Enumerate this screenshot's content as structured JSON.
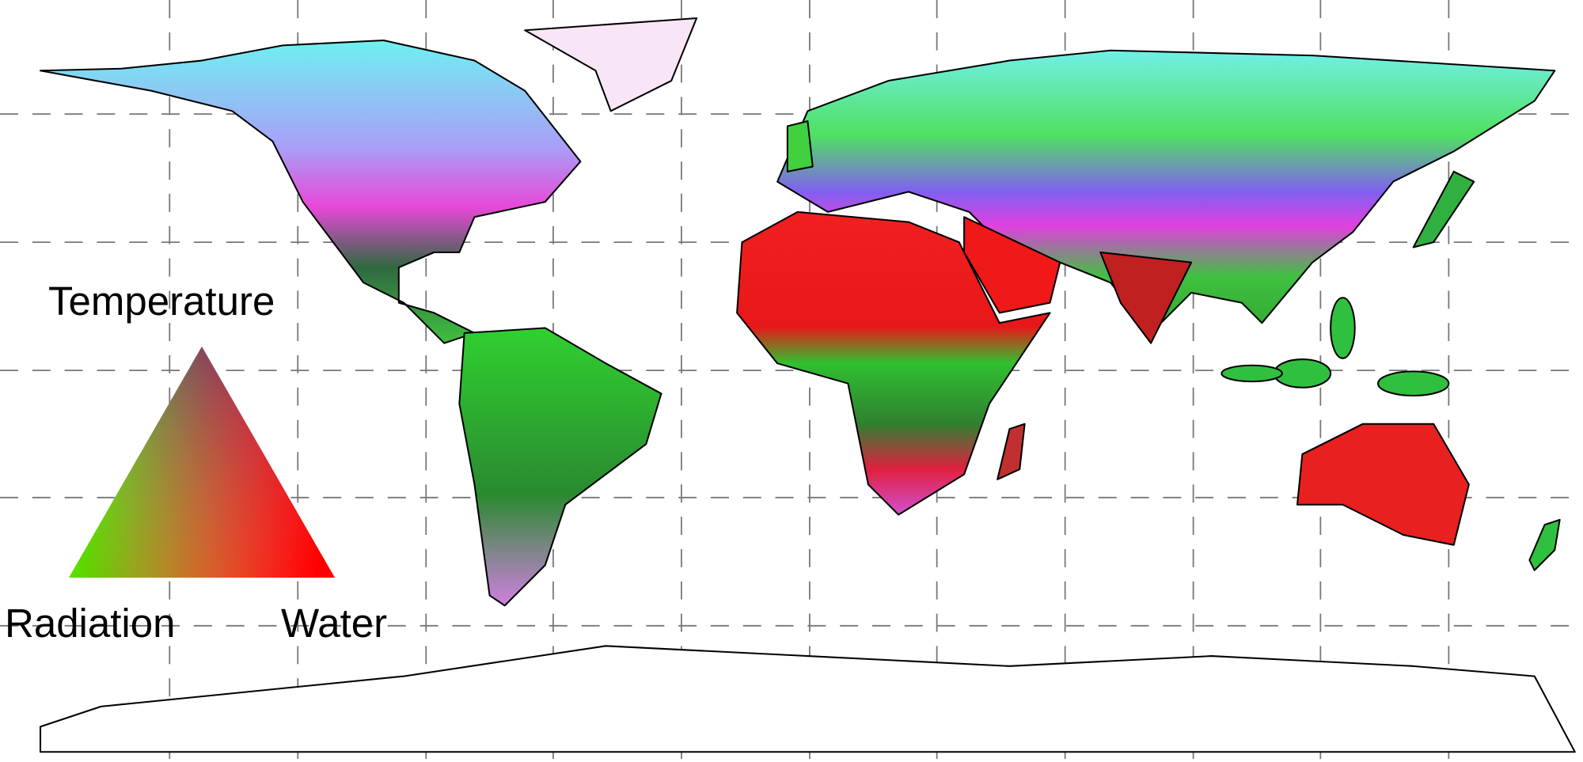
{
  "legend": {
    "top_label": "Temperature",
    "left_label": "Radiation",
    "right_label": "Water"
  }
}
